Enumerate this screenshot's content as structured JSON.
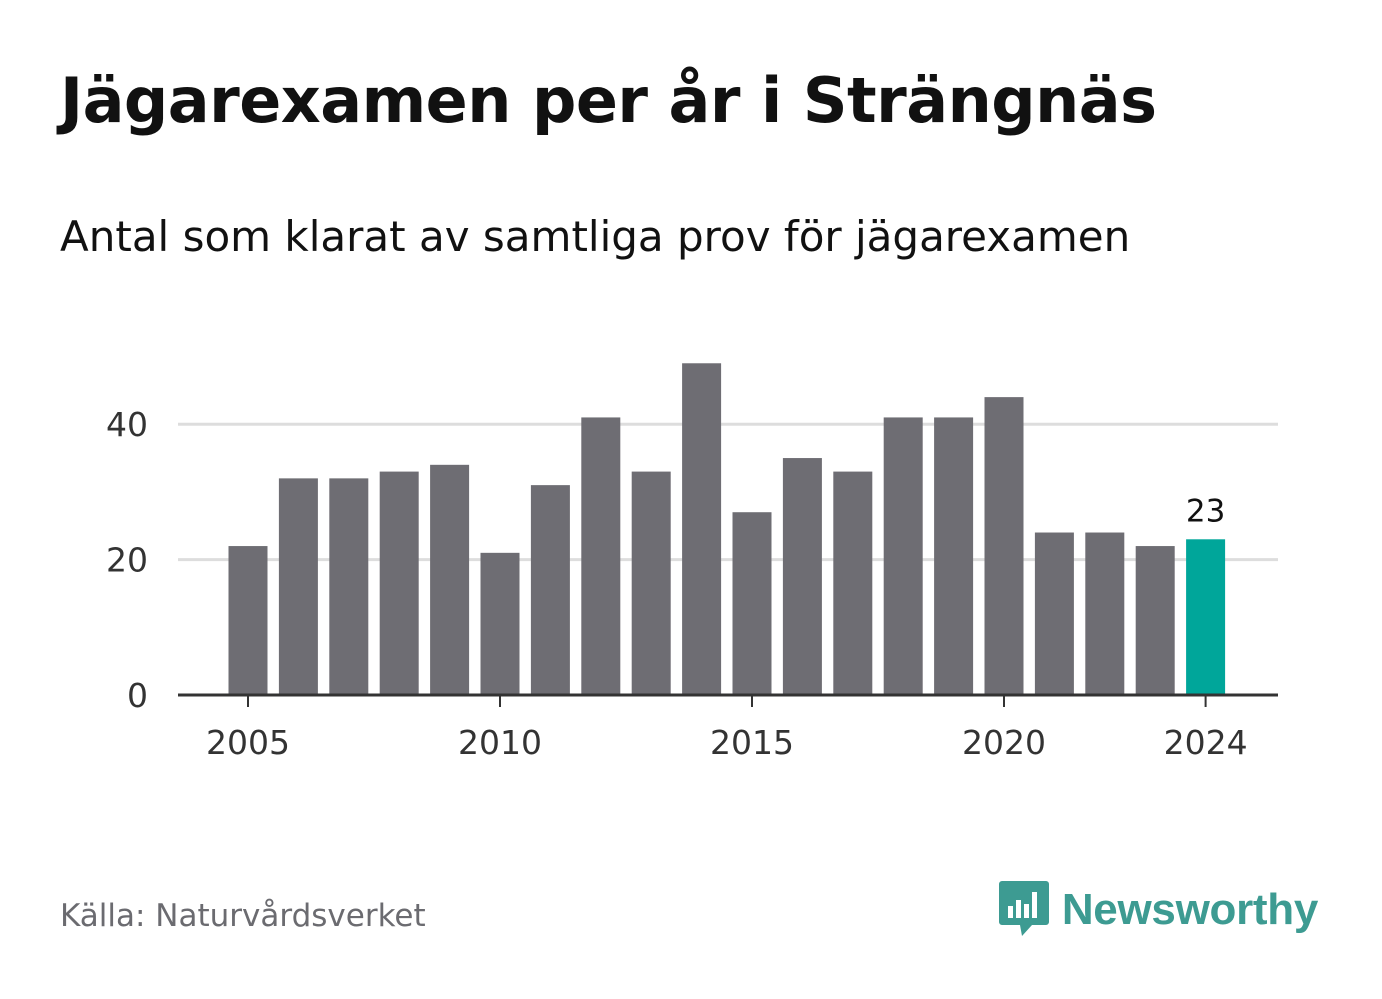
{
  "header": {
    "title": "Jägarexamen per år i Strängnäs",
    "subtitle": "Antal som klarat av samtliga prov för jägarexamen"
  },
  "footer": {
    "source": "Källa: Naturvårdsverket",
    "brand": "Newsworthy",
    "brand_icon": "bar-chart-speech-bubble-icon"
  },
  "colors": {
    "bar": "#6e6d73",
    "highlight": "#00a69a",
    "grid": "#dddddd",
    "axis": "#333333",
    "brand": "#3d9b92"
  },
  "chart_data": {
    "type": "bar",
    "categories": [
      2005,
      2006,
      2007,
      2008,
      2009,
      2010,
      2011,
      2012,
      2013,
      2014,
      2015,
      2016,
      2017,
      2018,
      2019,
      2020,
      2021,
      2022,
      2023,
      2024
    ],
    "values": [
      22,
      32,
      32,
      33,
      34,
      21,
      31,
      41,
      33,
      49,
      27,
      35,
      33,
      41,
      41,
      44,
      24,
      24,
      22,
      23
    ],
    "highlight_category": 2024,
    "highlight_label": "23",
    "title": "Jägarexamen per år i Strängnäs",
    "subtitle": "Antal som klarat av samtliga prov för jägarexamen",
    "xlabel": "",
    "ylabel": "",
    "ylim": [
      0,
      51
    ],
    "yticks": [
      0,
      20,
      40
    ],
    "ytick_labels": [
      "0",
      "20",
      "40"
    ],
    "xticks": [
      2005,
      2010,
      2015,
      2020,
      2024
    ],
    "xtick_labels": [
      "2005",
      "2010",
      "2015",
      "2020",
      "2024"
    ],
    "grid": true,
    "legend": "none"
  }
}
